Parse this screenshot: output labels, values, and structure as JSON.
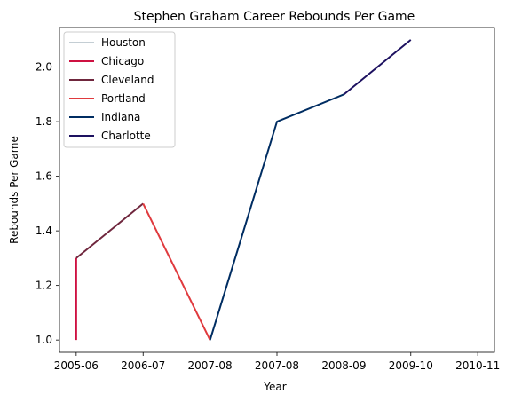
{
  "chart_data": {
    "type": "line",
    "title": "Stephen Graham  Career Rebounds Per Game",
    "xlabel": "Year",
    "ylabel": "Rebounds Per Game",
    "x_tick_labels": [
      "2005-06",
      "2006-07",
      "2007-08",
      "2007-08",
      "2008-09",
      "2009-10",
      "2010-11"
    ],
    "xlim": [
      -0.25,
      6.25
    ],
    "ylim": [
      0.955,
      2.145
    ],
    "y_ticks": [
      1.0,
      1.2,
      1.4,
      1.6,
      1.8,
      2.0
    ],
    "grid": false,
    "legend_position": "top-left",
    "series": [
      {
        "name": "Houston",
        "color": "#C4CED4",
        "points": [
          [
            0,
            1.0
          ],
          [
            0,
            1.0
          ]
        ]
      },
      {
        "name": "Chicago",
        "color": "#CE1141",
        "points": [
          [
            0,
            1.0
          ],
          [
            0,
            1.3
          ]
        ]
      },
      {
        "name": "Cleveland",
        "color": "#6F263D",
        "points": [
          [
            0,
            1.3
          ],
          [
            1,
            1.5
          ]
        ]
      },
      {
        "name": "Portland",
        "color": "#E03A3E",
        "points": [
          [
            1,
            1.5
          ],
          [
            2,
            1.0
          ]
        ]
      },
      {
        "name": "Indiana",
        "color": "#002D62",
        "points": [
          [
            2,
            1.0
          ],
          [
            3,
            1.8
          ],
          [
            4,
            1.9
          ]
        ]
      },
      {
        "name": "Charlotte",
        "color": "#1D1160",
        "points": [
          [
            4,
            1.9
          ],
          [
            5,
            2.1
          ]
        ]
      }
    ]
  }
}
